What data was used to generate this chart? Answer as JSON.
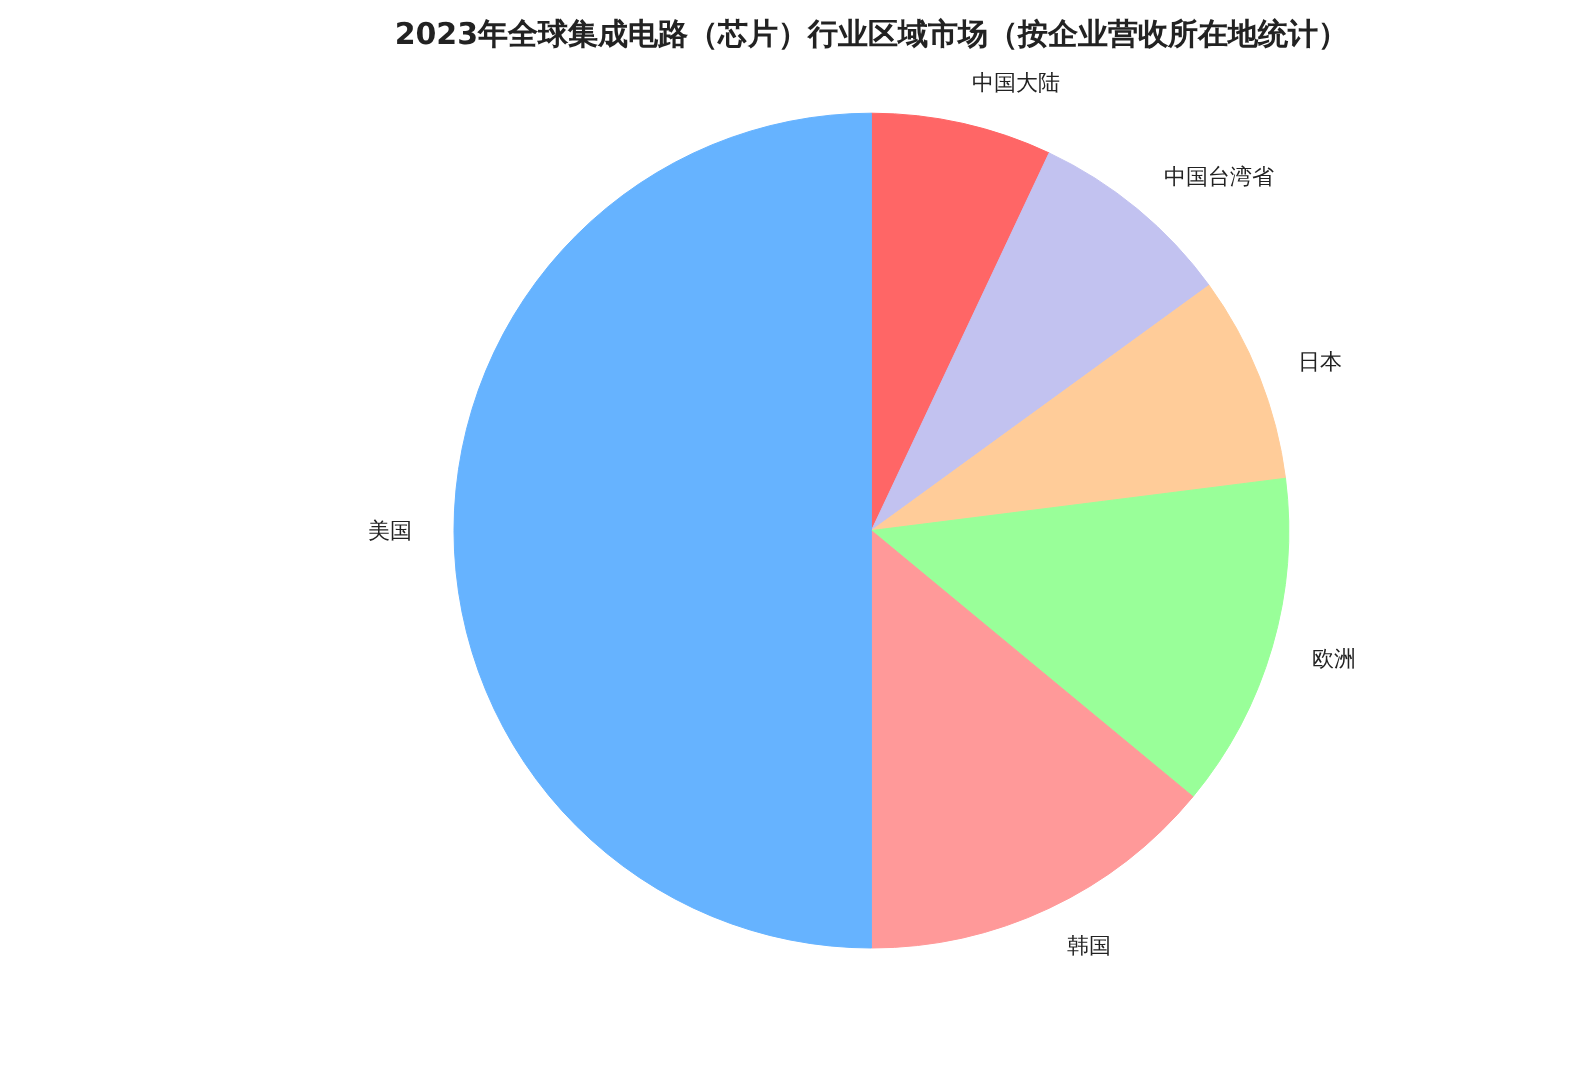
{
  "chart_data": {
    "type": "pie",
    "title": "2023年全球集成电路（芯片）行业区域市场（按企业营收所在地统计）",
    "categories": [
      "中国大陆",
      "中国台湾省",
      "日本",
      "欧洲",
      "韩国",
      "美国"
    ],
    "values": [
      7,
      8,
      8,
      13,
      14,
      50
    ],
    "colors": [
      "#ff6666",
      "#c2c2f0",
      "#ffcc99",
      "#99ff99",
      "#ff9999",
      "#66b3ff"
    ]
  }
}
